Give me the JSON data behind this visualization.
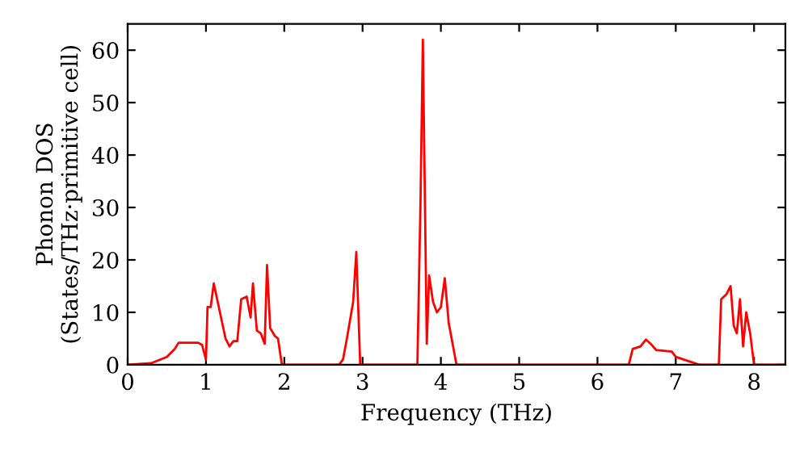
{
  "chart_data": {
    "type": "line",
    "xlabel": "Frequency (THz)",
    "ylabel": "Phonon DOS\n(States/THz·primitive cell)",
    "xlim": [
      0,
      8.4
    ],
    "ylim": [
      0,
      65
    ],
    "xticks": [
      0,
      1,
      2,
      3,
      4,
      5,
      6,
      7,
      8
    ],
    "yticks": [
      0,
      10,
      20,
      30,
      40,
      50,
      60
    ],
    "grid": false,
    "legend": false,
    "series": [
      {
        "color": "#ff0000",
        "x": [
          0,
          0.3,
          0.5,
          0.6,
          0.65,
          0.9,
          0.95,
          1.0,
          1.02,
          1.06,
          1.1,
          1.15,
          1.25,
          1.3,
          1.35,
          1.4,
          1.45,
          1.52,
          1.57,
          1.6,
          1.65,
          1.7,
          1.75,
          1.78,
          1.82,
          1.88,
          1.92,
          1.97,
          2.0,
          2.7,
          2.75,
          2.8,
          2.88,
          2.92,
          2.97,
          3.7,
          3.74,
          3.77,
          3.82,
          3.85,
          3.9,
          3.95,
          4.0,
          4.05,
          4.1,
          4.2,
          6.4,
          6.45,
          6.55,
          6.62,
          6.68,
          6.75,
          6.95,
          7.0,
          7.2,
          7.3,
          7.55,
          7.58,
          7.65,
          7.7,
          7.74,
          7.78,
          7.82,
          7.86,
          7.9,
          7.95,
          8.0,
          8.4
        ],
        "values": [
          0,
          0.3,
          1.5,
          3,
          4.2,
          4.2,
          3.8,
          1,
          11,
          11,
          15.5,
          12,
          5,
          3.5,
          4.5,
          4.5,
          12.5,
          13,
          9,
          15.5,
          6.5,
          6,
          4,
          19,
          7,
          5.5,
          5,
          0,
          0,
          0,
          1,
          5,
          12,
          21.5,
          0,
          0,
          31,
          62,
          4,
          17,
          12,
          10,
          11,
          16.5,
          8,
          0,
          0,
          3,
          3.5,
          4.8,
          4,
          2.8,
          2.5,
          1.5,
          0.5,
          0,
          0,
          12.5,
          13.5,
          15,
          7.5,
          6,
          12.5,
          3.5,
          10,
          6,
          0,
          0
        ]
      }
    ]
  }
}
